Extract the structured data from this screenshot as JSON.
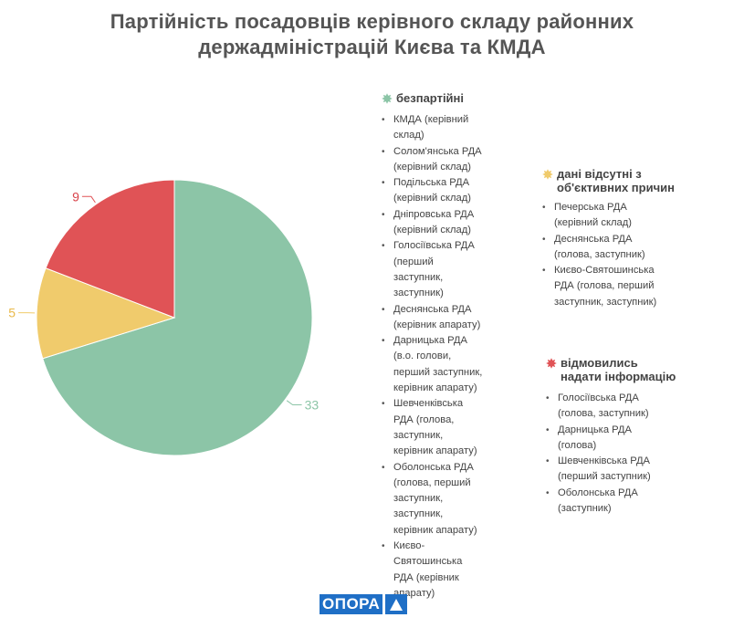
{
  "title_line1": "Партійність посадовців керівного складу районних",
  "title_line2": "держадміністрацій Києва та КМДА",
  "chart_data": {
    "type": "pie",
    "title": "Партійність посадовців керівного складу районних держадміністрацій Києва та КМДА",
    "slices": [
      {
        "name": "безпартійні",
        "value": 33,
        "color": "#8cc5a7",
        "label_color": "#8cc5a7"
      },
      {
        "name": "дані відсутні з об'єктивних причин",
        "value": 5,
        "color": "#f0cb6c",
        "label_color": "#e9b949"
      },
      {
        "name": "відмовились надати інформацію",
        "value": 9,
        "color": "#e05356",
        "label_color": "#d9434a"
      }
    ],
    "start_angle_deg": 0,
    "direction": "clockwise"
  },
  "legend": {
    "nonparty": {
      "name": "безпартійні",
      "color": "#8cc5a7",
      "items": [
        "КМДА (керівний склад)",
        "Солом'янська РДА (керівний склад)",
        "Подільська РДА (керівний склад)",
        "Дніпровська РДА (керівний склад)",
        "Голосіївська РДА (перший заступник, заступник)",
        "Деснянська РДА (керівник апарату)",
        "Дарницька РДА (в.о. голови, перший заступник, керівник апарату)",
        "Шевченківська РДА (голова, заступник, керівник апарату)",
        "Оболонська РДА (голова, перший заступник, заступник, керівник апарату)",
        "Києво-Святошинська РДА (керівник апарату)"
      ]
    },
    "nodata": {
      "name_line1": "дані відсутні з",
      "name_line2": "об'єктивних причин",
      "color": "#f0cb6c",
      "items": [
        "Печерська РДА (керівний склад)",
        "Деснянська РДА (голова, заступник)",
        "Києво-Святошинська РДА (голова, перший заступник, заступник)"
      ]
    },
    "refused": {
      "name_line1": "відмовились",
      "name_line2": "надати інформацію",
      "color": "#e05356",
      "items": [
        "Голосіївська РДА (голова, заступник)",
        "Дарницька РДА (голова)",
        "Шевченківська РДА (перший заступник)",
        "Оболонська РДА (заступник)"
      ]
    }
  },
  "logo": {
    "text": "ОПОРА",
    "icon": "triangle-icon",
    "color": "#1f6fc6"
  }
}
